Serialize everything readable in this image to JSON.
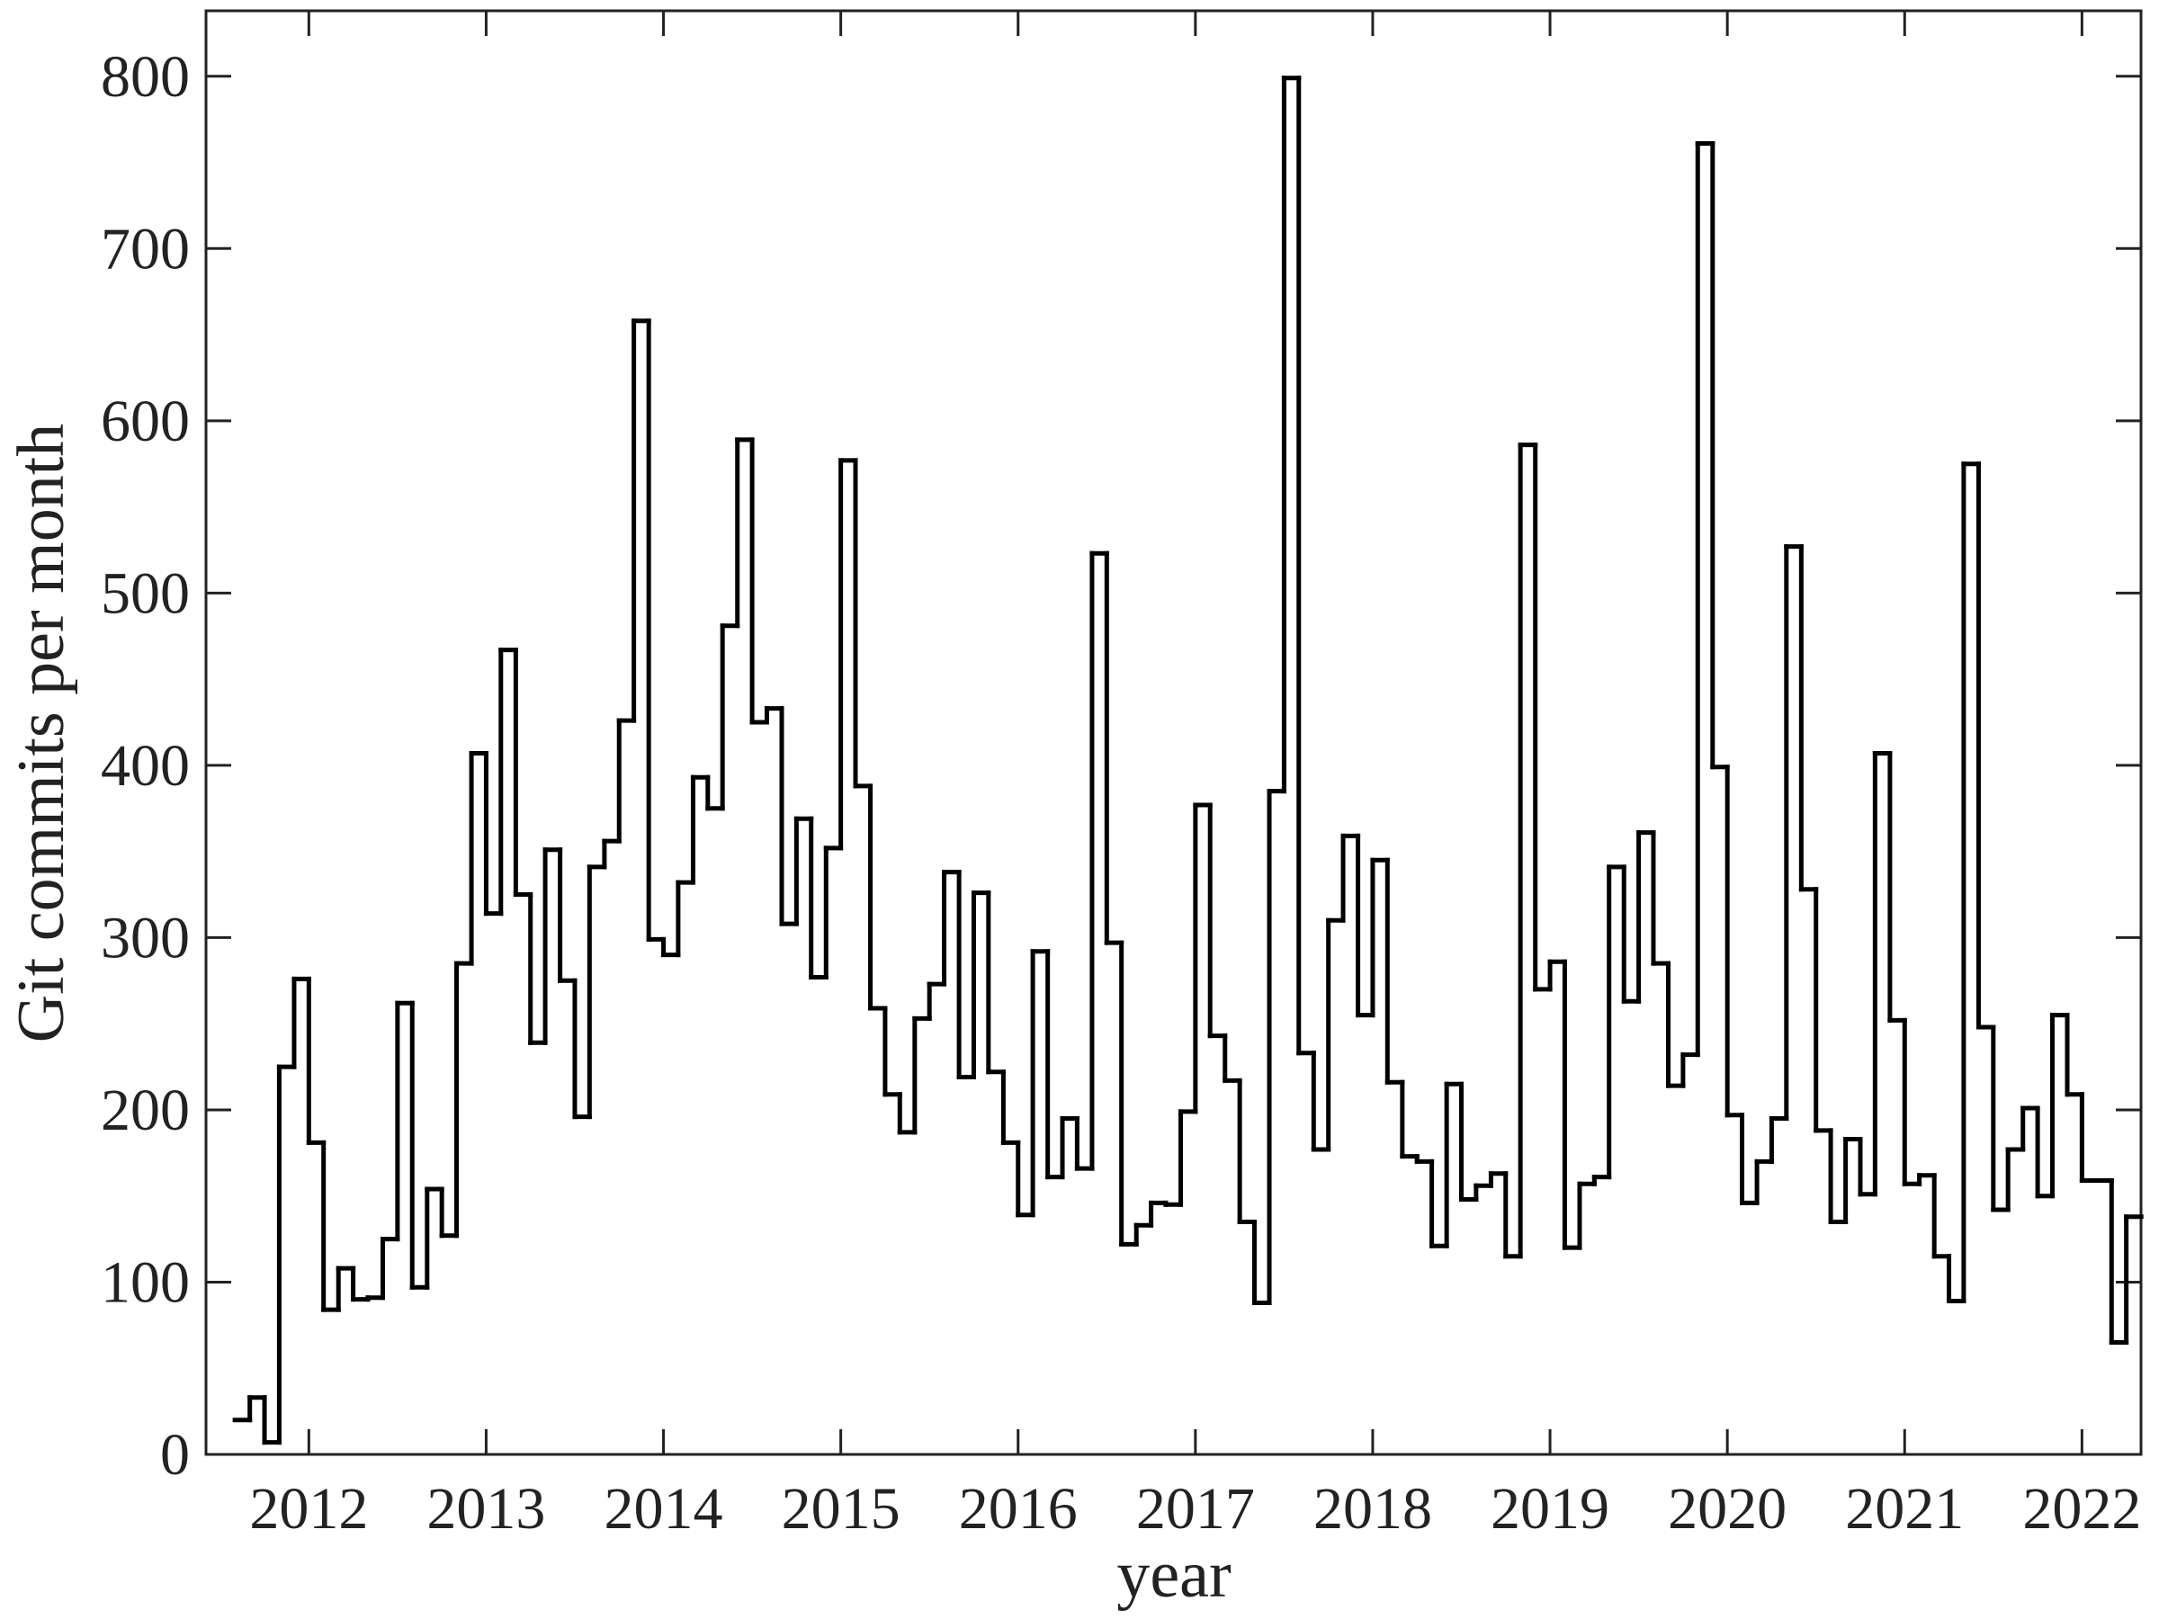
{
  "chart_data": {
    "type": "step",
    "x_label": "year",
    "y_label": "Git commits per month",
    "color": "#000000",
    "x": [
      2011.583,
      2011.667,
      2011.75,
      2011.833,
      2011.917,
      2012.0,
      2012.083,
      2012.167,
      2012.25,
      2012.333,
      2012.417,
      2012.5,
      2012.583,
      2012.667,
      2012.75,
      2012.833,
      2012.917,
      2013.0,
      2013.083,
      2013.167,
      2013.25,
      2013.333,
      2013.417,
      2013.5,
      2013.583,
      2013.667,
      2013.75,
      2013.833,
      2013.917,
      2014.0,
      2014.083,
      2014.167,
      2014.25,
      2014.333,
      2014.417,
      2014.5,
      2014.583,
      2014.667,
      2014.75,
      2014.833,
      2014.917,
      2015.0,
      2015.083,
      2015.167,
      2015.25,
      2015.333,
      2015.417,
      2015.5,
      2015.583,
      2015.667,
      2015.75,
      2015.833,
      2015.917,
      2016.0,
      2016.083,
      2016.167,
      2016.25,
      2016.333,
      2016.417,
      2016.5,
      2016.583,
      2016.667,
      2016.75,
      2016.833,
      2016.917,
      2017.0,
      2017.083,
      2017.167,
      2017.25,
      2017.333,
      2017.417,
      2017.5,
      2017.583,
      2017.667,
      2017.75,
      2017.833,
      2017.917,
      2018.0,
      2018.083,
      2018.167,
      2018.25,
      2018.333,
      2018.417,
      2018.5,
      2018.583,
      2018.667,
      2018.75,
      2018.833,
      2018.917,
      2019.0,
      2019.083,
      2019.167,
      2019.25,
      2019.333,
      2019.417,
      2019.5,
      2019.583,
      2019.667,
      2019.75,
      2019.833,
      2019.917,
      2020.0,
      2020.083,
      2020.167,
      2020.25,
      2020.333,
      2020.417,
      2020.5,
      2020.583,
      2020.667,
      2020.75,
      2020.833,
      2020.917,
      2021.0,
      2021.083,
      2021.167,
      2021.25,
      2021.333,
      2021.417,
      2021.5,
      2021.583,
      2021.667,
      2021.75,
      2021.833,
      2021.917,
      2022.0,
      2022.083,
      2022.167,
      2022.25
    ],
    "values": [
      20,
      33,
      7,
      225,
      276,
      181,
      84,
      108,
      90,
      91,
      125,
      262,
      97,
      154,
      127,
      285,
      407,
      314,
      467,
      325,
      239,
      351,
      275,
      196,
      341,
      356,
      426,
      658,
      299,
      290,
      332,
      393,
      375,
      481,
      589,
      425,
      433,
      308,
      369,
      277,
      352,
      577,
      388,
      259,
      209,
      187,
      253,
      273,
      338,
      219,
      326,
      222,
      181,
      139,
      292,
      161,
      195,
      166,
      523,
      297,
      122,
      133,
      146,
      145,
      199,
      377,
      243,
      217,
      135,
      88,
      385,
      799,
      233,
      177,
      310,
      359,
      255,
      345,
      216,
      173,
      170,
      121,
      215,
      148,
      156,
      163,
      115,
      586,
      270,
      286,
      120,
      157,
      161,
      341,
      263,
      361,
      285,
      214,
      232,
      761,
      399,
      197,
      146,
      170,
      195,
      527,
      328,
      188,
      135,
      183,
      151,
      407,
      252,
      157,
      162,
      115,
      89,
      575,
      248,
      142,
      177,
      201,
      150,
      255,
      209,
      159,
      159,
      65,
      138
    ],
    "xlim": [
      2011.42,
      2022.333
    ],
    "xticks": [
      2012,
      2013,
      2014,
      2015,
      2016,
      2017,
      2018,
      2019,
      2020,
      2021,
      2022
    ],
    "ylim": [
      0,
      838
    ],
    "yticks": [
      0,
      100,
      200,
      300,
      400,
      500,
      600,
      700,
      800
    ]
  }
}
